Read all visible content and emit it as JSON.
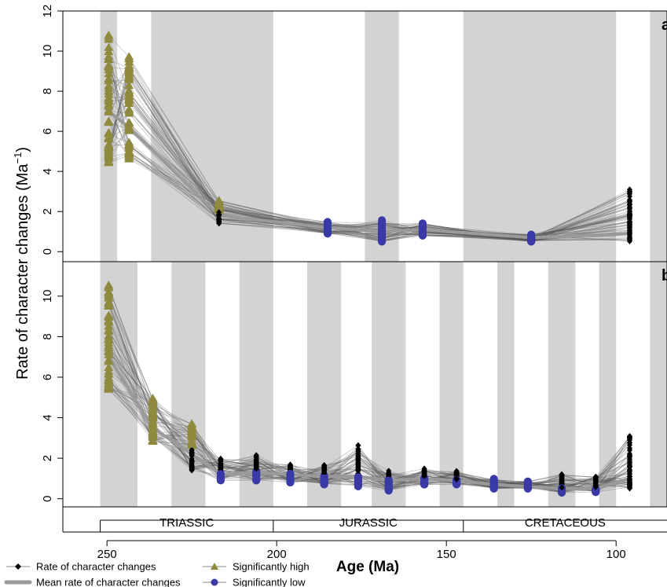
{
  "chart_data": {
    "type": "line",
    "xlabel": "Age (Ma)",
    "ylabel": "Rate of character changes (Ma",
    "ylabel_superscript": "−1",
    "ylabel_suffix": ")",
    "x_axis": {
      "reversed": true,
      "xlim": [
        263,
        85
      ],
      "ticks": [
        250,
        200,
        150,
        100
      ]
    },
    "periods": [
      {
        "name": "TRIASSIC",
        "start": 252,
        "end": 201
      },
      {
        "name": "JURASSIC",
        "start": 201,
        "end": 145
      },
      {
        "name": "CRETACEOUS",
        "start": 145,
        "end": 85
      }
    ],
    "legend": {
      "placement": "bottom-left",
      "entries": [
        {
          "name": "Rate of character changes",
          "symbol": "diamond",
          "color": "#000000"
        },
        {
          "name": "Significantly high",
          "symbol": "triangle",
          "color": "#8f8a3e"
        },
        {
          "name": "Mean rate of character changes",
          "symbol": "thick-line",
          "color": "#9a9a9a"
        },
        {
          "name": "Significantly low",
          "symbol": "circle",
          "color": "#3a3aa6"
        }
      ]
    },
    "colors": {
      "band": "#d3d3d3",
      "line": "#555555",
      "mean": "#9a9a9a",
      "high": "#8f8a3e",
      "low": "#3a3aa6"
    },
    "panels": [
      {
        "label": "a",
        "ylim": [
          -0.5,
          12
        ],
        "yticks": [
          0,
          2,
          4,
          6,
          8,
          10,
          12
        ],
        "bands": [
          [
            252,
            247
          ],
          [
            237,
            201
          ],
          [
            174,
            164
          ],
          [
            145,
            100
          ],
          [
            90,
            85
          ]
        ],
        "bins": [
          {
            "age": 249.5,
            "mean": 7.0,
            "min": 4.4,
            "max": 11.6,
            "status": "high"
          },
          {
            "age": 243.5,
            "mean": 6.2,
            "min": 4.6,
            "max": 10.2,
            "status": "high"
          },
          {
            "age": 217,
            "mean": 1.8,
            "min": 1.4,
            "max": 2.7,
            "status": "mixed"
          },
          {
            "age": 185,
            "mean": 1.2,
            "min": 0.9,
            "max": 1.6,
            "status": "low"
          },
          {
            "age": 169,
            "mean": 1.0,
            "min": 0.5,
            "max": 1.6,
            "status": "low"
          },
          {
            "age": 157,
            "mean": 1.1,
            "min": 0.8,
            "max": 1.5,
            "status": "low"
          },
          {
            "age": 125,
            "mean": 0.7,
            "min": 0.5,
            "max": 0.9,
            "status": "low"
          },
          {
            "age": 96,
            "mean": 0.9,
            "min": 0.5,
            "max": 3.4,
            "status": "normal"
          }
        ]
      },
      {
        "label": "b",
        "ylim": [
          -0.4,
          11.7
        ],
        "yticks": [
          0,
          2,
          4,
          6,
          8,
          10
        ],
        "bands": [
          [
            252,
            241
          ],
          [
            231,
            221
          ],
          [
            211,
            201
          ],
          [
            191,
            181
          ],
          [
            172,
            162
          ],
          [
            152,
            145
          ],
          [
            135,
            130
          ],
          [
            120,
            112
          ],
          [
            105,
            100
          ],
          [
            90,
            85
          ]
        ],
        "bins": [
          {
            "age": 249.5,
            "mean": 7.0,
            "min": 5.3,
            "max": 11.3,
            "status": "high"
          },
          {
            "age": 236.5,
            "mean": 3.5,
            "min": 2.8,
            "max": 5.2,
            "status": "high"
          },
          {
            "age": 225,
            "mean": 2.2,
            "min": 1.4,
            "max": 4.1,
            "status": "mixed"
          },
          {
            "age": 216.5,
            "mean": 1.2,
            "min": 0.9,
            "max": 2.1,
            "status": "low-mixed"
          },
          {
            "age": 206,
            "mean": 1.3,
            "min": 0.9,
            "max": 2.3,
            "status": "low-mixed"
          },
          {
            "age": 196,
            "mean": 1.2,
            "min": 0.8,
            "max": 1.8,
            "status": "low-mixed"
          },
          {
            "age": 186,
            "mean": 1.1,
            "min": 0.7,
            "max": 1.8,
            "status": "low-mixed"
          },
          {
            "age": 176,
            "mean": 1.1,
            "min": 0.6,
            "max": 2.7,
            "status": "low-mixed"
          },
          {
            "age": 167,
            "mean": 0.9,
            "min": 0.4,
            "max": 1.5,
            "status": "low-mixed"
          },
          {
            "age": 156.5,
            "mean": 1.0,
            "min": 0.7,
            "max": 1.5,
            "status": "low-mixed"
          },
          {
            "age": 147,
            "mean": 0.9,
            "min": 0.7,
            "max": 1.4,
            "status": "low-mixed"
          },
          {
            "age": 136,
            "mean": 0.7,
            "min": 0.5,
            "max": 1.0,
            "status": "low"
          },
          {
            "age": 126,
            "mean": 0.6,
            "min": 0.5,
            "max": 0.9,
            "status": "low"
          },
          {
            "age": 116,
            "mean": 0.5,
            "min": 0.3,
            "max": 1.3,
            "status": "low-mixed"
          },
          {
            "age": 106,
            "mean": 0.5,
            "min": 0.3,
            "max": 1.2,
            "status": "low-mixed"
          },
          {
            "age": 96,
            "mean": 1.0,
            "min": 0.5,
            "max": 3.4,
            "status": "normal"
          }
        ]
      }
    ]
  }
}
